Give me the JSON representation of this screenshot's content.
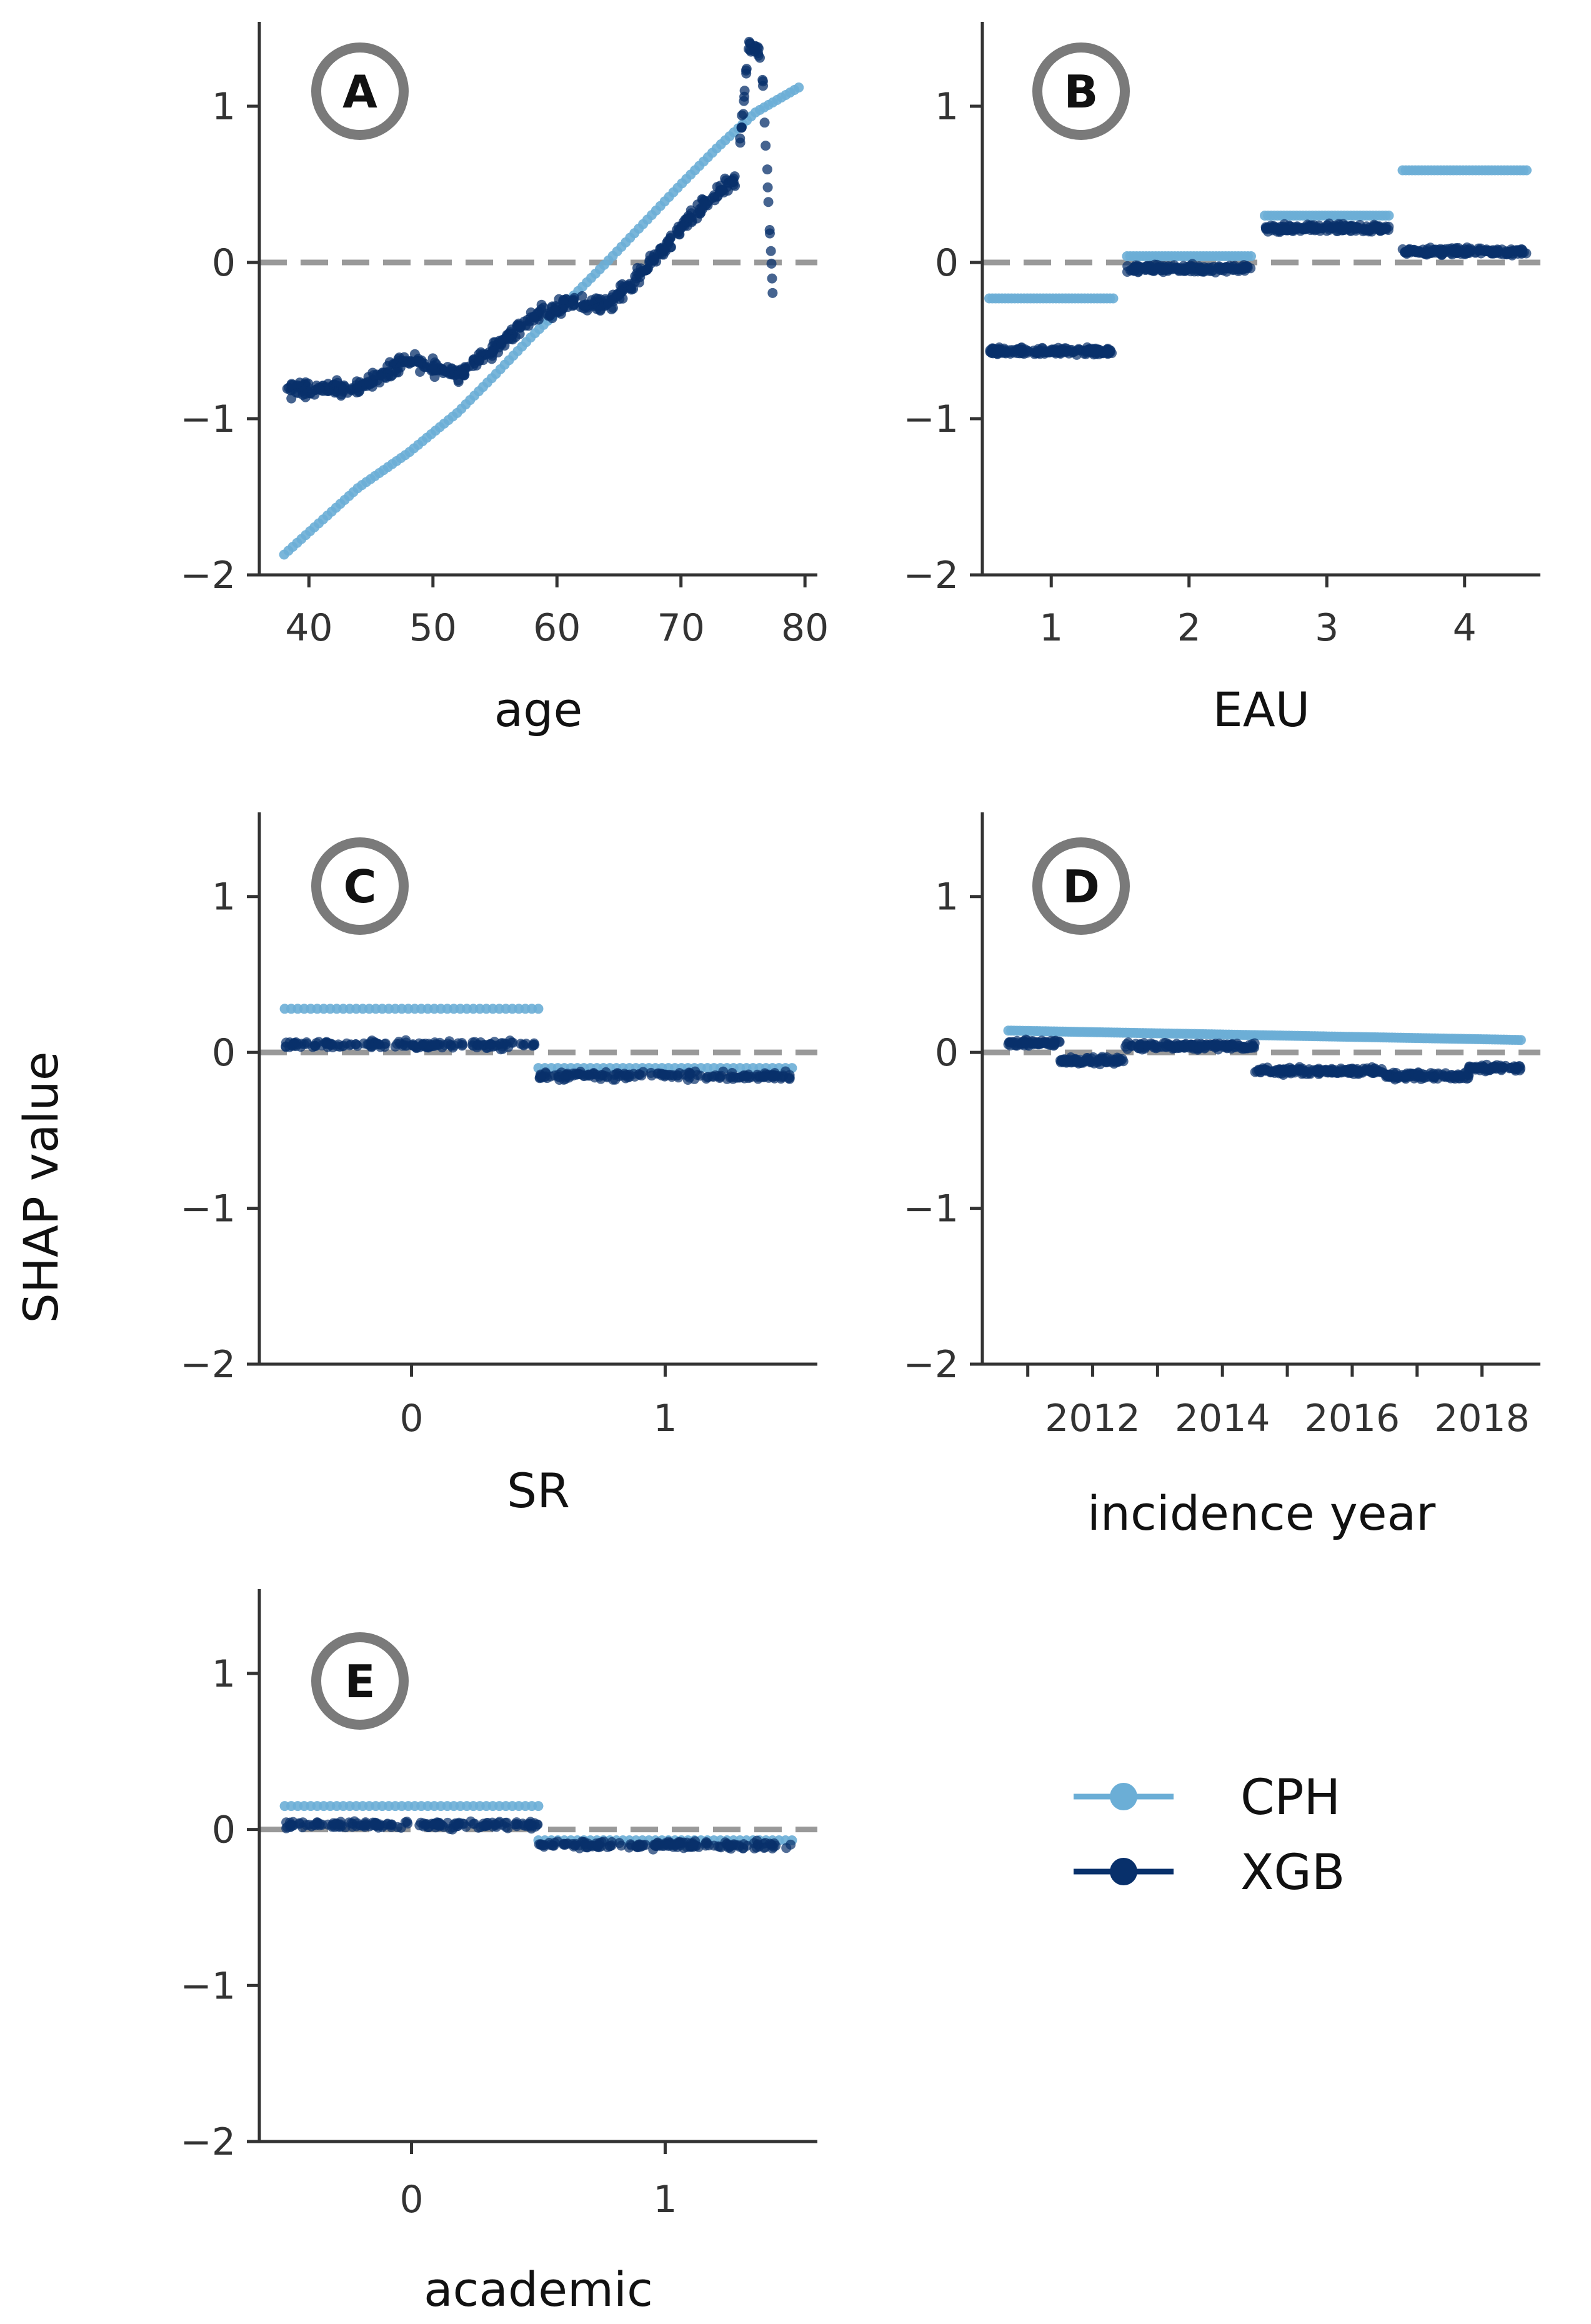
{
  "ylabel": "SHAP value",
  "colors": {
    "CPH": "#6baed6",
    "XGB": "#08306b",
    "zero_line": "#999999",
    "axis": "#333333",
    "badge_ring": "#7a7a7a"
  },
  "legend": {
    "placement": "lower-right",
    "items": [
      {
        "label": "CPH",
        "color": "#6baed6"
      },
      {
        "label": "XGB",
        "color": "#08306b"
      }
    ]
  },
  "chart_data": [
    {
      "type": "scatter",
      "panel": "A",
      "xlabel": "age",
      "xlim": [
        36,
        81
      ],
      "ylim": [
        -2,
        1.5
      ],
      "x_ticks": [
        40,
        50,
        60,
        70,
        80
      ],
      "x_tick_labels": [
        "40",
        "50",
        "60",
        "70",
        "80"
      ],
      "y_ticks": [
        -2,
        -1,
        0,
        1
      ],
      "y_tick_labels": [
        "−2",
        "−1",
        "0",
        "1"
      ],
      "grid": false,
      "series": [
        {
          "name": "CPH",
          "kind": "curve",
          "x": [
            38,
            44,
            48,
            52,
            55,
            58,
            61,
            64,
            67,
            70,
            73,
            76,
            79.5
          ],
          "y": [
            -1.87,
            -1.44,
            -1.22,
            -0.96,
            -0.72,
            -0.47,
            -0.24,
            0.0,
            0.25,
            0.5,
            0.74,
            0.96,
            1.12
          ]
        },
        {
          "name": "XGB",
          "kind": "noisy",
          "x": [
            38,
            44,
            48,
            52,
            55,
            58,
            61,
            64,
            67,
            70,
            73,
            74.5,
            75.5,
            76.5,
            77.5
          ],
          "y": [
            -0.82,
            -0.8,
            -0.62,
            -0.72,
            -0.55,
            -0.35,
            -0.25,
            -0.28,
            -0.05,
            0.22,
            0.45,
            0.55,
            1.4,
            1.3,
            -0.35
          ]
        }
      ]
    },
    {
      "type": "scatter",
      "panel": "B",
      "xlabel": "EAU",
      "xlim": [
        0.5,
        4.55
      ],
      "ylim": [
        -2,
        1.5
      ],
      "x_ticks": [
        1,
        2,
        3,
        4
      ],
      "x_tick_labels": [
        "1",
        "2",
        "3",
        "4"
      ],
      "y_ticks": [
        -2,
        -1,
        0,
        1
      ],
      "y_tick_labels": [
        "−2",
        "−1",
        "0",
        "1"
      ],
      "grid": false,
      "series": [
        {
          "name": "CPH",
          "kind": "steps",
          "x": [
            1,
            2,
            3,
            4
          ],
          "y": [
            -0.23,
            0.04,
            0.3,
            0.59
          ],
          "half_width": 0.45
        },
        {
          "name": "XGB",
          "kind": "steps_noisy",
          "x": [
            1,
            2,
            3,
            4
          ],
          "y": [
            -0.57,
            -0.04,
            0.22,
            0.07
          ],
          "half_width": 0.45
        }
      ]
    },
    {
      "type": "scatter",
      "panel": "C",
      "xlabel": "SR",
      "xlim": [
        -0.6,
        1.6
      ],
      "ylim": [
        -2,
        1.5
      ],
      "x_ticks": [
        0,
        1
      ],
      "x_tick_labels": [
        "0",
        "1"
      ],
      "y_ticks": [
        -2,
        -1,
        0,
        1
      ],
      "y_tick_labels": [
        "−2",
        "−1",
        "0",
        "1"
      ],
      "grid": false,
      "series": [
        {
          "name": "CPH",
          "kind": "steps",
          "x": [
            0,
            1
          ],
          "y": [
            0.28,
            -0.1
          ],
          "half_width": 0.5
        },
        {
          "name": "XGB",
          "kind": "steps_noisy",
          "x": [
            0,
            1
          ],
          "y": [
            0.05,
            -0.15
          ],
          "half_width": 0.5
        }
      ]
    },
    {
      "type": "scatter",
      "panel": "D",
      "xlabel": "incidence year",
      "xlim": [
        2010.3,
        2018.9
      ],
      "ylim": [
        -2,
        1.5
      ],
      "x_ticks": [
        2012,
        2014,
        2016,
        2018
      ],
      "x_tick_labels": [
        "2012",
        "2014",
        "2016",
        "2018"
      ],
      "minor_x_ticks": [
        2011,
        2013,
        2015,
        2017
      ],
      "y_ticks": [
        -2,
        -1,
        0,
        1
      ],
      "y_tick_labels": [
        "−2",
        "−1",
        "0",
        "1"
      ],
      "grid": false,
      "series": [
        {
          "name": "CPH",
          "kind": "curve",
          "x": [
            2010.7,
            2018.6
          ],
          "y": [
            0.14,
            0.08
          ]
        },
        {
          "name": "XGB",
          "kind": "segments_noisy",
          "segments": [
            {
              "from": 2010.7,
              "to": 2011.5,
              "y": 0.06
            },
            {
              "from": 2011.5,
              "to": 2012.5,
              "y": -0.05
            },
            {
              "from": 2012.5,
              "to": 2014.5,
              "y": 0.04
            },
            {
              "from": 2014.5,
              "to": 2016.5,
              "y": -0.12
            },
            {
              "from": 2016.5,
              "to": 2017.8,
              "y": -0.15
            },
            {
              "from": 2017.8,
              "to": 2018.6,
              "y": -0.1
            }
          ]
        }
      ]
    },
    {
      "type": "scatter",
      "panel": "E",
      "xlabel": "academic",
      "xlim": [
        -0.6,
        1.6
      ],
      "ylim": [
        -2,
        1.5
      ],
      "x_ticks": [
        0,
        1
      ],
      "x_tick_labels": [
        "0",
        "1"
      ],
      "y_ticks": [
        -2,
        -1,
        0,
        1
      ],
      "y_tick_labels": [
        "−2",
        "−1",
        "0",
        "1"
      ],
      "grid": false,
      "series": [
        {
          "name": "CPH",
          "kind": "steps",
          "x": [
            0,
            1
          ],
          "y": [
            0.15,
            -0.07
          ],
          "half_width": 0.5
        },
        {
          "name": "XGB",
          "kind": "steps_noisy",
          "x": [
            0,
            1
          ],
          "y": [
            0.03,
            -0.1
          ],
          "half_width": 0.5
        }
      ]
    }
  ]
}
